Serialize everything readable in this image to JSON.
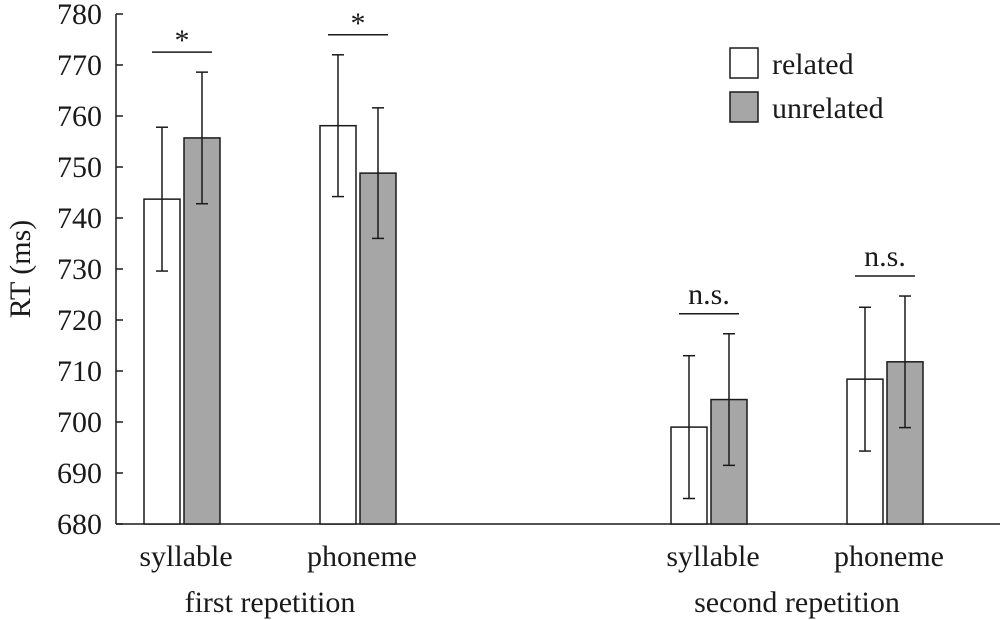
{
  "chart_data": {
    "type": "bar",
    "ylabel": "RT (ms)",
    "ylim": [
      680,
      780
    ],
    "yticks": [
      680,
      690,
      700,
      710,
      720,
      730,
      740,
      750,
      760,
      770,
      780
    ],
    "groups": [
      {
        "label": "first repetition",
        "categories": [
          {
            "label": "syllable",
            "significance": "*"
          },
          {
            "label": "phoneme",
            "significance": "*"
          }
        ]
      },
      {
        "label": "second repetition",
        "categories": [
          {
            "label": "syllable",
            "significance": "n.s."
          },
          {
            "label": "phoneme",
            "significance": "n.s."
          }
        ]
      }
    ],
    "series": [
      {
        "name": "related",
        "color": "#ffffff",
        "values": [
          743.7,
          758.1,
          699.0,
          708.4
        ],
        "error": [
          14.1,
          13.9,
          14.0,
          14.1
        ]
      },
      {
        "name": "unrelated",
        "color": "#a6a6a6",
        "values": [
          755.7,
          748.8,
          704.4,
          711.8
        ],
        "error": [
          12.9,
          12.8,
          12.9,
          12.9
        ]
      }
    ],
    "legend": "top-right",
    "grid": false
  }
}
